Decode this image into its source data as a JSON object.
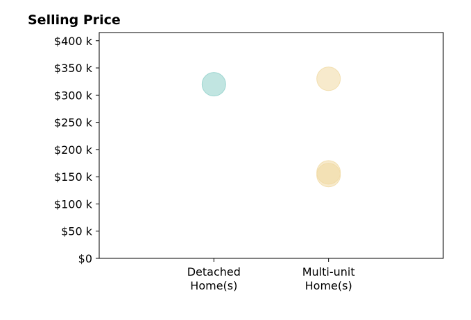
{
  "chart_data": {
    "type": "scatter",
    "title": "Selling Price",
    "xlabel": "",
    "ylabel": "",
    "categories": [
      "Detached\nHome(s)",
      "Multi-unit\nHome(s)"
    ],
    "xlim": [
      -1,
      2
    ],
    "ylim": [
      0,
      415000
    ],
    "yticks": [
      0,
      50000,
      100000,
      150000,
      200000,
      250000,
      300000,
      350000,
      400000
    ],
    "ytick_labels": [
      "$0",
      "$50 k",
      "$100 k",
      "$150 k",
      "$200 k",
      "$250 k",
      "$300 k",
      "$350 k",
      "$400 k"
    ],
    "grid": false,
    "legend": "none",
    "series": [
      {
        "color": "#8ecfc9",
        "points": [
          {
            "category": 0,
            "y": 320000
          }
        ]
      },
      {
        "color": "#f0d9a3",
        "points": [
          {
            "category": 1,
            "y": 330000
          },
          {
            "category": 1,
            "y": 158000
          },
          {
            "category": 1,
            "y": 153000
          }
        ]
      }
    ],
    "marker_alpha": 0.55
  }
}
